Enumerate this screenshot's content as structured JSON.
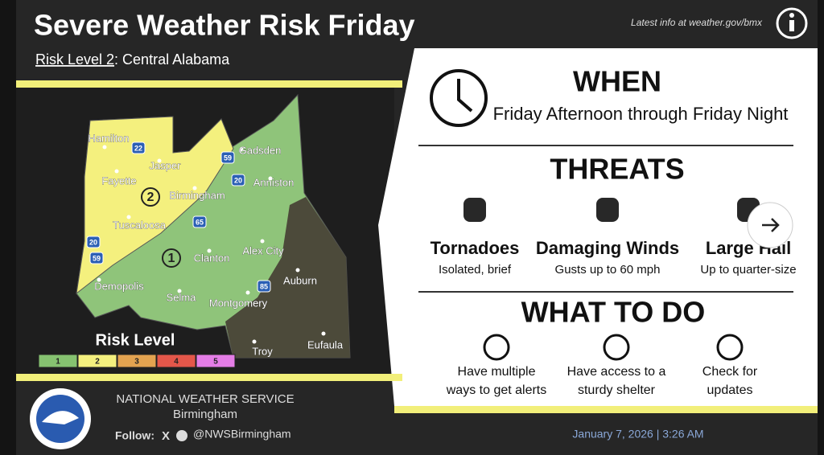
{
  "header": {
    "title": "Severe Weather Risk Friday",
    "link": "Latest info at weather.gov/bmx"
  },
  "subtitle": {
    "level": "Risk Level 2",
    "area": ": Central Alabama"
  },
  "map": {
    "cities": [
      "Hamilton",
      "Jasper",
      "Fayette",
      "Birmingham",
      "Gadsden",
      "Anniston",
      "Tuscaloosa",
      "Alex City",
      "Clanton",
      "Demopolis",
      "Auburn",
      "Selma",
      "Montgomery",
      "Troy",
      "Eufaula"
    ],
    "highways": [
      "22",
      "59",
      "20",
      "65",
      "20",
      "59",
      "85"
    ],
    "risk_labels": [
      "2",
      "1"
    ],
    "legend_title": "Risk Level",
    "legend": [
      1,
      2,
      3,
      4,
      5
    ]
  },
  "when": {
    "heading": "WHEN",
    "text": "Friday Afternoon through Friday Night"
  },
  "threats": {
    "heading": "THREATS",
    "items": [
      {
        "name": "Tornadoes",
        "detail": "Isolated, brief"
      },
      {
        "name": "Damaging Winds",
        "detail": "Gusts up to 60 mph"
      },
      {
        "name": "Large Hail",
        "detail": "Up to quarter-size"
      }
    ]
  },
  "what_to_do": {
    "heading": "WHAT TO DO",
    "items": [
      [
        "Have multiple",
        "ways to get alerts"
      ],
      [
        "Have access to a",
        "sturdy shelter"
      ],
      [
        "Check for",
        "updates"
      ]
    ]
  },
  "footer": {
    "org": "NATIONAL WEATHER SERVICE",
    "office": "Birmingham",
    "follow": "Follow:",
    "handle": "@NWSBirmingham",
    "date": "January 7, 2026 | 3:26 AM"
  }
}
